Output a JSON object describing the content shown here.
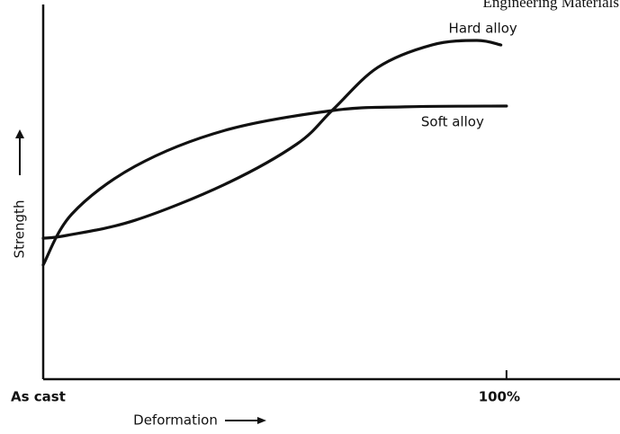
{
  "header": "Engineering Materials",
  "chart_data": {
    "type": "line",
    "xlabel": "Deformation",
    "ylabel": "Strength",
    "xlim": [
      0,
      124.5
    ],
    "ylim": [
      0,
      100
    ],
    "xticks": [
      {
        "value": 0,
        "label": "As cast"
      },
      {
        "value": 100,
        "label": "100%"
      }
    ],
    "series": [
      {
        "name": "Hard alloy",
        "color": "#111111",
        "x": [
          0,
          5.2,
          19.8,
          39.2,
          54.8,
          62.5,
          72.2,
          83.9,
          93.6,
          98.8
        ],
        "values": [
          37.6,
          38.4,
          42.4,
          52,
          62.8,
          71.9,
          83.2,
          89.2,
          90.4,
          89.2
        ]
      },
      {
        "name": "Soft alloy",
        "color": "#111111",
        "x": [
          0,
          6.2,
          19.8,
          39.2,
          62.5,
          78.1,
          100
        ],
        "values": [
          30.5,
          44.1,
          56.8,
          66.4,
          71.7,
          72.7,
          72.9
        ]
      }
    ]
  }
}
